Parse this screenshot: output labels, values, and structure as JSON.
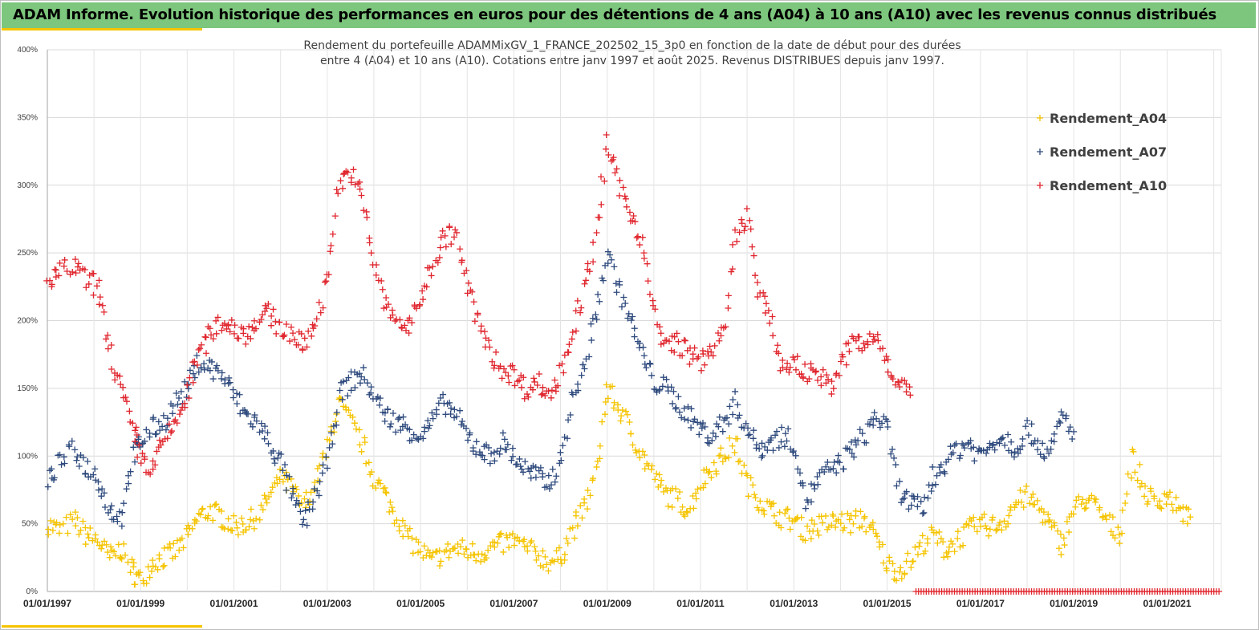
{
  "header": {
    "title": "ADAM Informe. Evolution historique des performances en euros pour des détentions de 4 ans (A04) à 10 ans (A10) avec les revenus connus distribués",
    "accent_color": "#f5c400",
    "banner_color": "#7dc67d"
  },
  "chart_data": {
    "type": "scatter",
    "title_lines": [
      "Rendement du portefeuille ADAMMixGV_1_FRANCE_202502_15_3p0  en fonction de la date de début pour des durées",
      "entre 4 (A04) et 10 ans (A10). Cotations  entre janv 1997 et août 2025. Revenus DISTRIBUES depuis janv 1997."
    ],
    "xlabel": "",
    "ylabel": "",
    "ylim": [
      0,
      400
    ],
    "y_ticks": [
      "0%",
      "50%",
      "100%",
      "150%",
      "200%",
      "250%",
      "300%",
      "350%",
      "400%"
    ],
    "x_ticks": [
      "01/01/1997",
      "01/01/1999",
      "01/01/2001",
      "01/01/2003",
      "01/01/2005",
      "01/01/2007",
      "01/01/2009",
      "01/01/2011",
      "01/01/2013",
      "01/01/2015",
      "01/01/2017",
      "01/01/2019",
      "01/01/2021"
    ],
    "xlim": [
      "1997-01-01",
      "2022-03-01"
    ],
    "grid": true,
    "legend_position": "top-right",
    "marker": "+",
    "series": [
      {
        "name": "Rendement_A04",
        "color": "#f5c400",
        "points": [
          [
            "1997-01",
            50
          ],
          [
            "1997-04",
            45
          ],
          [
            "1997-08",
            52
          ],
          [
            "1997-11",
            42
          ],
          [
            "1998-02",
            38
          ],
          [
            "1998-05",
            25
          ],
          [
            "1998-08",
            32
          ],
          [
            "1998-11",
            15
          ],
          [
            "1999-01",
            8
          ],
          [
            "1999-04",
            22
          ],
          [
            "1999-07",
            25
          ],
          [
            "1999-10",
            30
          ],
          [
            "2000-01",
            40
          ],
          [
            "2000-04",
            55
          ],
          [
            "2000-07",
            60
          ],
          [
            "2000-10",
            55
          ],
          [
            "2001-01",
            48
          ],
          [
            "2001-04",
            50
          ],
          [
            "2001-07",
            55
          ],
          [
            "2001-10",
            70
          ],
          [
            "2002-01",
            85
          ],
          [
            "2002-04",
            75
          ],
          [
            "2002-07",
            62
          ],
          [
            "2002-10",
            80
          ],
          [
            "2003-01",
            105
          ],
          [
            "2003-04",
            140
          ],
          [
            "2003-07",
            125
          ],
          [
            "2003-10",
            110
          ],
          [
            "2004-01",
            85
          ],
          [
            "2004-04",
            70
          ],
          [
            "2004-07",
            55
          ],
          [
            "2004-10",
            40
          ],
          [
            "2005-01",
            30
          ],
          [
            "2005-04",
            22
          ],
          [
            "2005-07",
            28
          ],
          [
            "2005-10",
            32
          ],
          [
            "2006-01",
            30
          ],
          [
            "2006-04",
            28
          ],
          [
            "2006-07",
            32
          ],
          [
            "2006-10",
            35
          ],
          [
            "2007-01",
            38
          ],
          [
            "2007-04",
            32
          ],
          [
            "2007-07",
            28
          ],
          [
            "2007-10",
            22
          ],
          [
            "2008-01",
            25
          ],
          [
            "2008-04",
            45
          ],
          [
            "2008-07",
            60
          ],
          [
            "2008-10",
            85
          ],
          [
            "2009-01",
            150
          ],
          [
            "2009-04",
            135
          ],
          [
            "2009-07",
            120
          ],
          [
            "2009-10",
            100
          ],
          [
            "2010-01",
            85
          ],
          [
            "2010-04",
            72
          ],
          [
            "2010-07",
            68
          ],
          [
            "2010-10",
            60
          ],
          [
            "2011-01",
            80
          ],
          [
            "2011-04",
            92
          ],
          [
            "2011-07",
            100
          ],
          [
            "2011-10",
            110
          ],
          [
            "2012-01",
            80
          ],
          [
            "2012-04",
            68
          ],
          [
            "2012-07",
            60
          ],
          [
            "2012-10",
            55
          ],
          [
            "2013-01",
            52
          ],
          [
            "2013-04",
            45
          ],
          [
            "2013-07",
            48
          ],
          [
            "2013-10",
            50
          ],
          [
            "2014-01",
            52
          ],
          [
            "2014-04",
            50
          ],
          [
            "2014-07",
            55
          ],
          [
            "2014-10",
            40
          ],
          [
            "2015-01",
            20
          ],
          [
            "2015-04",
            15
          ],
          [
            "2015-07",
            22
          ],
          [
            "2015-10",
            35
          ],
          [
            "2016-01",
            42
          ],
          [
            "2016-04",
            30
          ],
          [
            "2016-07",
            38
          ],
          [
            "2016-10",
            45
          ],
          [
            "2017-01",
            50
          ],
          [
            "2017-04",
            48
          ],
          [
            "2017-07",
            52
          ],
          [
            "2017-10",
            65
          ],
          [
            "2018-01",
            70
          ],
          [
            "2018-04",
            62
          ],
          [
            "2018-07",
            48
          ],
          [
            "2018-10",
            35
          ],
          [
            "2019-01",
            60
          ],
          [
            "2019-04",
            68
          ],
          [
            "2019-07",
            62
          ],
          [
            "2019-10",
            50
          ],
          [
            "2020-01",
            42
          ],
          [
            "2020-04",
            100
          ],
          [
            "2020-07",
            75
          ],
          [
            "2020-10",
            65
          ],
          [
            "2021-01",
            72
          ],
          [
            "2021-04",
            60
          ],
          [
            "2021-07",
            55
          ]
        ]
      },
      {
        "name": "Rendement_A07",
        "color": "#2e4a7d",
        "points": [
          [
            "1997-01",
            80
          ],
          [
            "1997-04",
            95
          ],
          [
            "1997-08",
            105
          ],
          [
            "1997-11",
            92
          ],
          [
            "1998-02",
            85
          ],
          [
            "1998-05",
            60
          ],
          [
            "1998-08",
            55
          ],
          [
            "1998-11",
            100
          ],
          [
            "1999-01",
            110
          ],
          [
            "1999-04",
            120
          ],
          [
            "1999-07",
            125
          ],
          [
            "1999-10",
            140
          ],
          [
            "2000-01",
            150
          ],
          [
            "2000-04",
            170
          ],
          [
            "2000-07",
            165
          ],
          [
            "2000-10",
            160
          ],
          [
            "2001-01",
            145
          ],
          [
            "2001-04",
            130
          ],
          [
            "2001-07",
            125
          ],
          [
            "2001-10",
            110
          ],
          [
            "2002-01",
            95
          ],
          [
            "2002-04",
            70
          ],
          [
            "2002-07",
            50
          ],
          [
            "2002-10",
            70
          ],
          [
            "2003-01",
            95
          ],
          [
            "2003-04",
            145
          ],
          [
            "2003-07",
            155
          ],
          [
            "2003-10",
            160
          ],
          [
            "2004-01",
            145
          ],
          [
            "2004-04",
            130
          ],
          [
            "2004-07",
            125
          ],
          [
            "2004-10",
            120
          ],
          [
            "2005-01",
            115
          ],
          [
            "2005-04",
            125
          ],
          [
            "2005-07",
            140
          ],
          [
            "2005-10",
            130
          ],
          [
            "2006-01",
            115
          ],
          [
            "2006-04",
            105
          ],
          [
            "2006-07",
            100
          ],
          [
            "2006-10",
            110
          ],
          [
            "2007-01",
            100
          ],
          [
            "2007-04",
            90
          ],
          [
            "2007-07",
            85
          ],
          [
            "2007-10",
            80
          ],
          [
            "2008-01",
            95
          ],
          [
            "2008-04",
            140
          ],
          [
            "2008-07",
            165
          ],
          [
            "2008-10",
            200
          ],
          [
            "2009-01",
            250
          ],
          [
            "2009-04",
            225
          ],
          [
            "2009-07",
            200
          ],
          [
            "2009-10",
            175
          ],
          [
            "2010-01",
            155
          ],
          [
            "2010-04",
            150
          ],
          [
            "2010-07",
            140
          ],
          [
            "2010-10",
            130
          ],
          [
            "2011-01",
            120
          ],
          [
            "2011-04",
            115
          ],
          [
            "2011-07",
            125
          ],
          [
            "2011-10",
            140
          ],
          [
            "2012-01",
            120
          ],
          [
            "2012-04",
            105
          ],
          [
            "2012-07",
            110
          ],
          [
            "2012-10",
            115
          ],
          [
            "2013-01",
            110
          ],
          [
            "2013-04",
            65
          ],
          [
            "2013-07",
            80
          ],
          [
            "2013-10",
            90
          ],
          [
            "2014-01",
            95
          ],
          [
            "2014-04",
            105
          ],
          [
            "2014-07",
            115
          ],
          [
            "2014-10",
            130
          ],
          [
            "2015-01",
            120
          ],
          [
            "2015-04",
            75
          ],
          [
            "2015-07",
            65
          ],
          [
            "2015-10",
            60
          ],
          [
            "2016-01",
            85
          ],
          [
            "2016-04",
            95
          ],
          [
            "2016-07",
            105
          ],
          [
            "2016-10",
            110
          ],
          [
            "2017-01",
            100
          ],
          [
            "2017-04",
            110
          ],
          [
            "2017-07",
            115
          ],
          [
            "2017-10",
            105
          ],
          [
            "2018-01",
            120
          ],
          [
            "2018-04",
            110
          ],
          [
            "2018-07",
            100
          ],
          [
            "2018-10",
            130
          ],
          [
            "2019-01",
            118
          ]
        ]
      },
      {
        "name": "Rendement_A10",
        "color": "#e0262e",
        "points": [
          [
            "1997-01",
            225
          ],
          [
            "1997-04",
            235
          ],
          [
            "1997-08",
            240
          ],
          [
            "1997-11",
            230
          ],
          [
            "1998-02",
            225
          ],
          [
            "1998-05",
            180
          ],
          [
            "1998-08",
            150
          ],
          [
            "1998-11",
            120
          ],
          [
            "1999-01",
            100
          ],
          [
            "1999-04",
            90
          ],
          [
            "1999-07",
            110
          ],
          [
            "1999-10",
            125
          ],
          [
            "2000-01",
            145
          ],
          [
            "2000-04",
            175
          ],
          [
            "2000-07",
            190
          ],
          [
            "2000-10",
            200
          ],
          [
            "2001-01",
            195
          ],
          [
            "2001-04",
            190
          ],
          [
            "2001-07",
            200
          ],
          [
            "2001-10",
            205
          ],
          [
            "2002-01",
            195
          ],
          [
            "2002-04",
            190
          ],
          [
            "2002-07",
            180
          ],
          [
            "2002-10",
            200
          ],
          [
            "2003-01",
            230
          ],
          [
            "2003-04",
            300
          ],
          [
            "2003-07",
            310
          ],
          [
            "2003-10",
            290
          ],
          [
            "2004-01",
            245
          ],
          [
            "2004-04",
            210
          ],
          [
            "2004-07",
            200
          ],
          [
            "2004-10",
            195
          ],
          [
            "2005-01",
            215
          ],
          [
            "2005-04",
            240
          ],
          [
            "2005-07",
            260
          ],
          [
            "2005-10",
            265
          ],
          [
            "2006-01",
            225
          ],
          [
            "2006-04",
            200
          ],
          [
            "2006-07",
            175
          ],
          [
            "2006-10",
            165
          ],
          [
            "2007-01",
            160
          ],
          [
            "2007-04",
            150
          ],
          [
            "2007-07",
            155
          ],
          [
            "2007-10",
            145
          ],
          [
            "2008-01",
            160
          ],
          [
            "2008-04",
            190
          ],
          [
            "2008-07",
            220
          ],
          [
            "2008-10",
            260
          ],
          [
            "2009-01",
            330
          ],
          [
            "2009-04",
            300
          ],
          [
            "2009-07",
            280
          ],
          [
            "2009-10",
            260
          ],
          [
            "2010-01",
            205
          ],
          [
            "2010-04",
            180
          ],
          [
            "2010-07",
            185
          ],
          [
            "2010-10",
            175
          ],
          [
            "2011-01",
            170
          ],
          [
            "2011-04",
            180
          ],
          [
            "2011-07",
            190
          ],
          [
            "2011-10",
            260
          ],
          [
            "2012-01",
            280
          ],
          [
            "2012-04",
            220
          ],
          [
            "2012-07",
            200
          ],
          [
            "2012-10",
            165
          ],
          [
            "2013-01",
            170
          ],
          [
            "2013-04",
            160
          ],
          [
            "2013-07",
            165
          ],
          [
            "2013-10",
            150
          ],
          [
            "2014-01",
            165
          ],
          [
            "2014-04",
            185
          ],
          [
            "2014-07",
            180
          ],
          [
            "2014-10",
            190
          ],
          [
            "2015-01",
            170
          ],
          [
            "2015-04",
            155
          ],
          [
            "2015-07",
            145
          ]
        ]
      }
    ]
  }
}
